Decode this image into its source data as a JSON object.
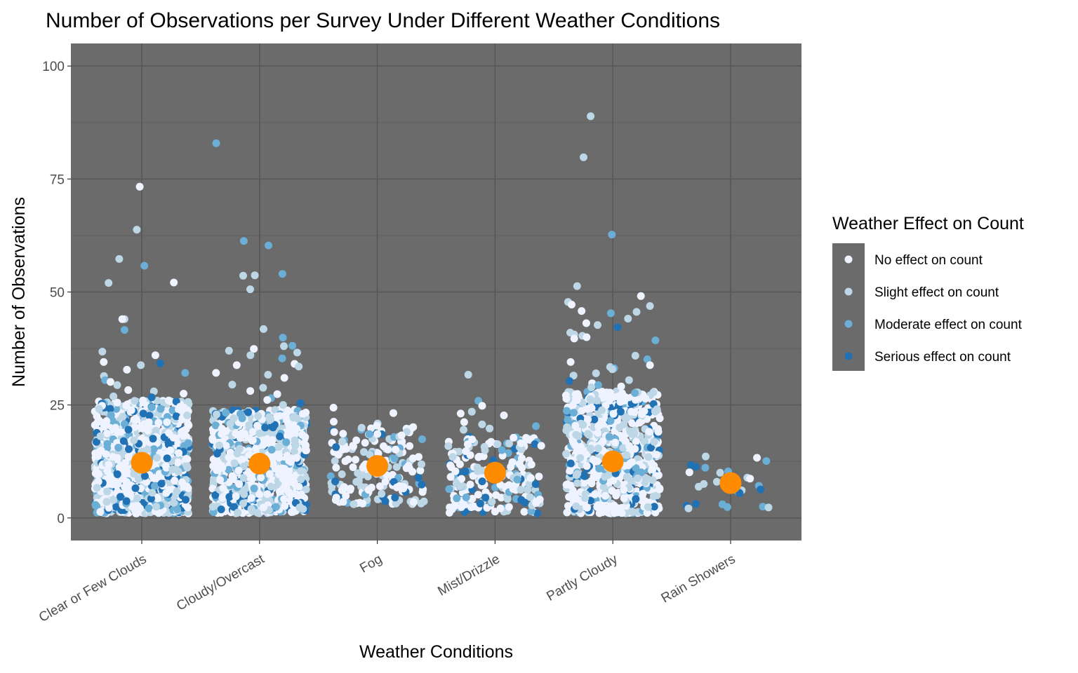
{
  "chart_data": {
    "type": "scatter",
    "title": "Number of Observations per Survey Under Different Weather Conditions",
    "xlabel": "Weather Conditions",
    "ylabel": "Number of Observations",
    "ylim": [
      -5,
      105
    ],
    "yticks": [
      0,
      25,
      50,
      75,
      100
    ],
    "grid": true,
    "categories": [
      "Clear or Few Clouds",
      "Cloudy/Overcast",
      "Fog",
      "Mist/Drizzle",
      "Partly Cloudy",
      "Rain Showers"
    ],
    "legend": {
      "title": "Weather Effect on Count",
      "placement": "right",
      "entries": [
        {
          "label": "No effect on count",
          "color": "#eff3ff"
        },
        {
          "label": "Slight effect on count",
          "color": "#bdd7e7"
        },
        {
          "label": "Moderate effect on count",
          "color": "#6baed6"
        },
        {
          "label": "Serious effect on count",
          "color": "#2171b5"
        }
      ]
    },
    "mean_marker_color": "#ff8c00",
    "means": [
      12.2,
      12.0,
      11.5,
      10.0,
      12.5,
      7.7
    ],
    "bulk": [
      {
        "category": "Clear or Few Clouds",
        "n": 1100,
        "range": [
          1,
          26
        ]
      },
      {
        "category": "Cloudy/Overcast",
        "n": 950,
        "range": [
          1,
          24
        ]
      },
      {
        "category": "Fog",
        "n": 180,
        "range": [
          3,
          20
        ]
      },
      {
        "category": "Mist/Drizzle",
        "n": 220,
        "range": [
          1,
          18
        ]
      },
      {
        "category": "Partly Cloudy",
        "n": 850,
        "range": [
          1,
          28
        ]
      },
      {
        "category": "Rain Showers",
        "n": 0,
        "range": [
          2,
          14
        ]
      }
    ],
    "outliers": [
      {
        "category": "Clear or Few Clouds",
        "points": [
          [
            73.3,
            0
          ],
          [
            63.8,
            1
          ],
          [
            57.3,
            1
          ],
          [
            55.8,
            2
          ],
          [
            52.1,
            0
          ],
          [
            52.0,
            1
          ],
          [
            44.0,
            1
          ],
          [
            44.0,
            0
          ],
          [
            41.6,
            2
          ],
          [
            36.8,
            1
          ],
          [
            36.0,
            0
          ],
          [
            34.5,
            0
          ],
          [
            34.2,
            3
          ],
          [
            33.8,
            1
          ],
          [
            32.8,
            0
          ],
          [
            32.1,
            2
          ],
          [
            31.4,
            1
          ],
          [
            30.5,
            2
          ],
          [
            30.1,
            0
          ],
          [
            29.4,
            1
          ],
          [
            28.3,
            0
          ],
          [
            28.0,
            1
          ],
          [
            27.5,
            0
          ],
          [
            26.9,
            1
          ],
          [
            26.7,
            3
          ]
        ]
      },
      {
        "category": "Cloudy/Overcast",
        "points": [
          [
            82.9,
            2
          ],
          [
            61.3,
            2
          ],
          [
            60.3,
            2
          ],
          [
            54.0,
            2
          ],
          [
            53.7,
            1
          ],
          [
            53.6,
            1
          ],
          [
            50.6,
            1
          ],
          [
            41.8,
            1
          ],
          [
            39.9,
            2
          ],
          [
            38.1,
            2
          ],
          [
            38.0,
            1
          ],
          [
            37.4,
            0
          ],
          [
            37.0,
            1
          ],
          [
            36.6,
            1
          ],
          [
            36.0,
            1
          ],
          [
            35.3,
            2
          ],
          [
            34.1,
            0
          ],
          [
            33.8,
            0
          ],
          [
            33.5,
            1
          ],
          [
            32.1,
            0
          ],
          [
            31.7,
            1
          ],
          [
            31.0,
            0
          ],
          [
            29.5,
            1
          ],
          [
            28.8,
            1
          ],
          [
            28.1,
            0
          ],
          [
            27.4,
            0
          ],
          [
            26.5,
            2
          ],
          [
            26.1,
            0
          ],
          [
            25.4,
            3
          ],
          [
            25.0,
            1
          ]
        ]
      },
      {
        "category": "Fog",
        "points": [
          [
            24.4,
            0
          ],
          [
            23.2,
            0
          ],
          [
            21.3,
            0
          ],
          [
            20.9,
            1
          ],
          [
            20.4,
            0
          ],
          [
            20.1,
            0
          ]
        ]
      },
      {
        "category": "Mist/Drizzle",
        "points": [
          [
            31.7,
            1
          ],
          [
            25.9,
            2
          ],
          [
            24.8,
            0
          ],
          [
            23.5,
            1
          ],
          [
            23.1,
            0
          ],
          [
            22.7,
            0
          ],
          [
            21.2,
            0
          ],
          [
            20.7,
            1
          ],
          [
            20.3,
            2
          ],
          [
            19.8,
            1
          ],
          [
            19.5,
            1
          ]
        ]
      },
      {
        "category": "Partly Cloudy",
        "points": [
          [
            88.9,
            1
          ],
          [
            79.8,
            1
          ],
          [
            62.7,
            2
          ],
          [
            51.3,
            1
          ],
          [
            49.1,
            0
          ],
          [
            47.8,
            1
          ],
          [
            47.2,
            0
          ],
          [
            46.9,
            1
          ],
          [
            45.8,
            0
          ],
          [
            45.6,
            1
          ],
          [
            45.3,
            2
          ],
          [
            44.1,
            1
          ],
          [
            43.1,
            0
          ],
          [
            42.7,
            1
          ],
          [
            42.2,
            3
          ],
          [
            41.0,
            1
          ],
          [
            40.6,
            1
          ],
          [
            40.3,
            1
          ],
          [
            40.0,
            0
          ],
          [
            39.7,
            0
          ],
          [
            39.3,
            2
          ],
          [
            35.9,
            1
          ],
          [
            35.1,
            2
          ],
          [
            34.5,
            0
          ],
          [
            33.8,
            0
          ],
          [
            33.4,
            1
          ],
          [
            33.1,
            2
          ],
          [
            32.9,
            1
          ],
          [
            32.0,
            1
          ],
          [
            31.5,
            1
          ],
          [
            30.5,
            1
          ],
          [
            30.3,
            3
          ],
          [
            29.8,
            0
          ],
          [
            29.4,
            2
          ],
          [
            29.1,
            0
          ],
          [
            28.9,
            1
          ]
        ]
      },
      {
        "category": "Rain Showers",
        "points": [
          [
            13.6,
            1
          ],
          [
            13.3,
            0
          ],
          [
            12.6,
            2
          ],
          [
            11.7,
            3
          ],
          [
            11.3,
            3
          ],
          [
            11.1,
            2
          ],
          [
            10.3,
            2
          ],
          [
            10.1,
            0
          ],
          [
            10.0,
            1
          ],
          [
            9.2,
            3
          ],
          [
            8.9,
            1
          ],
          [
            8.7,
            0
          ],
          [
            8.0,
            1
          ],
          [
            7.5,
            1
          ],
          [
            7.1,
            2
          ],
          [
            6.9,
            1
          ],
          [
            6.3,
            3
          ],
          [
            6.1,
            1
          ],
          [
            5.8,
            2
          ],
          [
            5.5,
            3
          ],
          [
            3.1,
            3
          ],
          [
            3.0,
            2
          ],
          [
            2.7,
            3
          ],
          [
            2.5,
            2
          ],
          [
            2.4,
            2
          ],
          [
            2.3,
            1
          ],
          [
            2.1,
            1
          ]
        ]
      }
    ]
  }
}
